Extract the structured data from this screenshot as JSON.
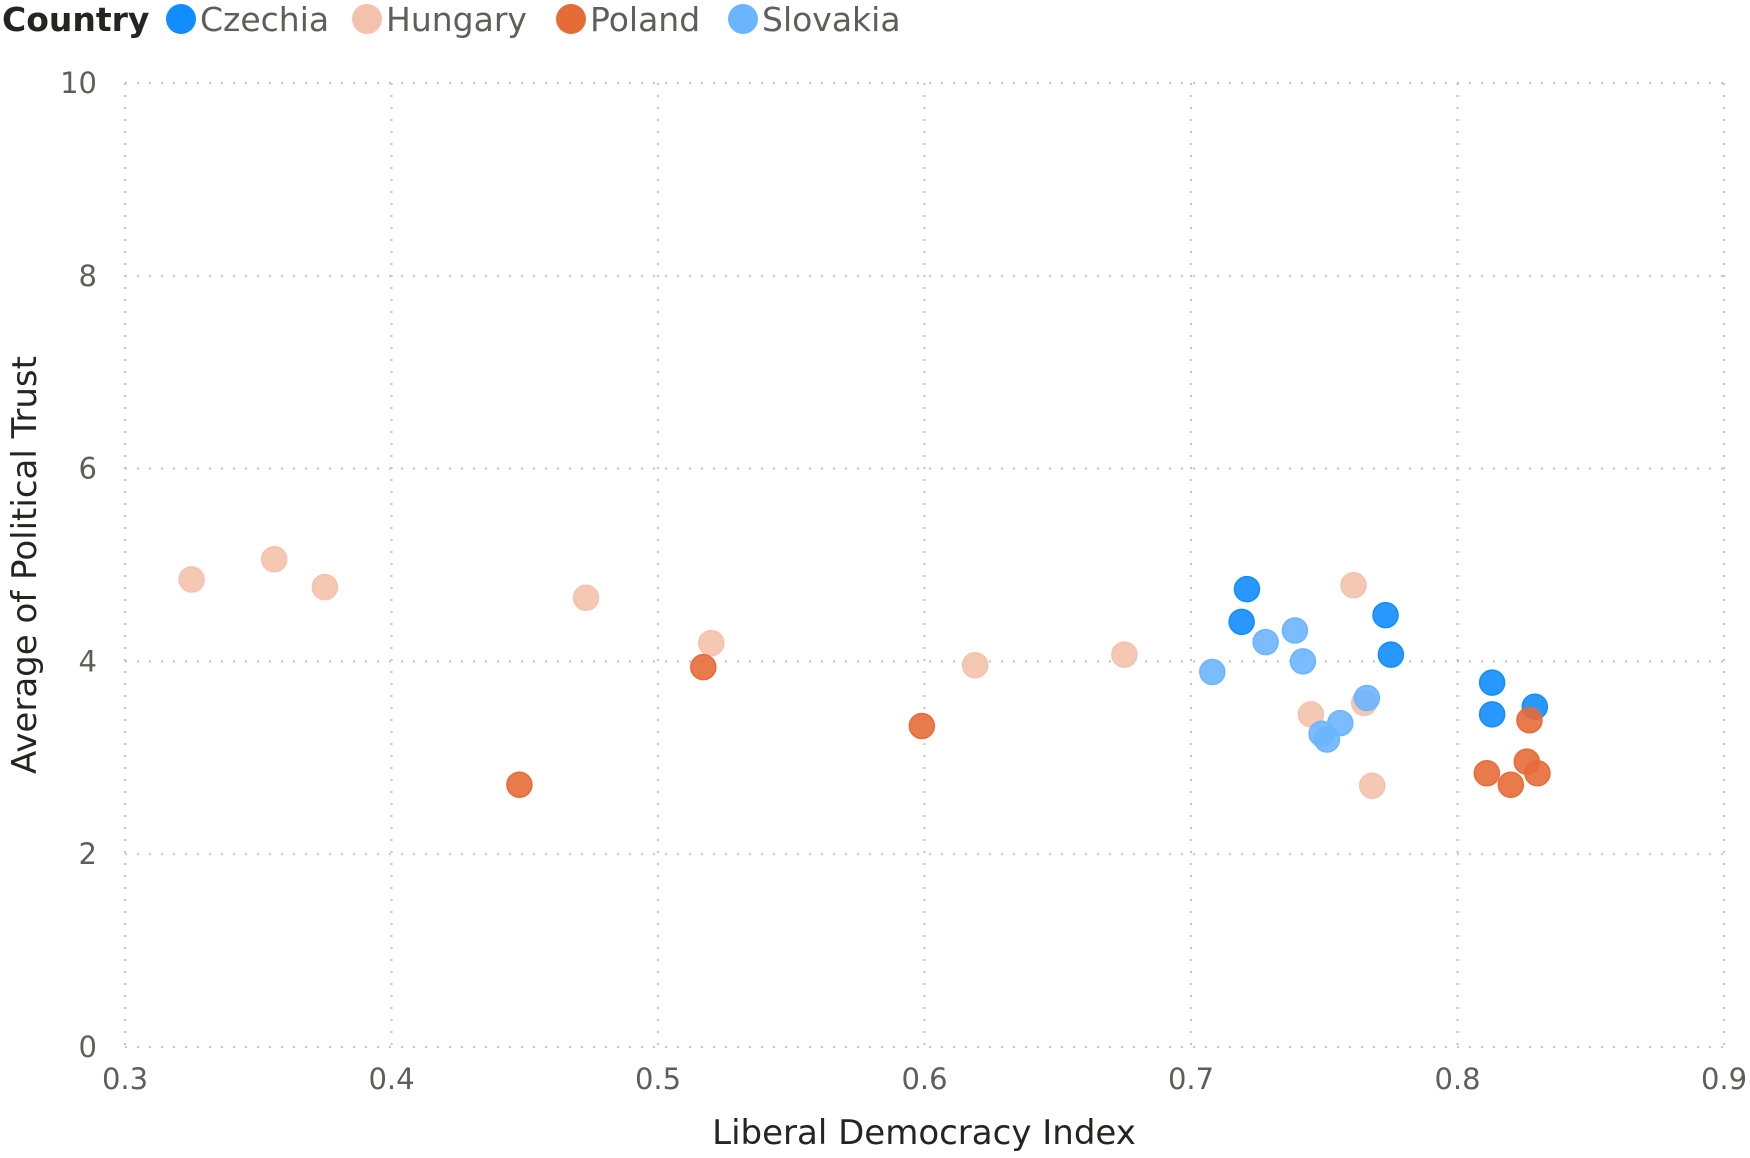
{
  "chart_data": {
    "type": "scatter",
    "title": "",
    "xlabel": "Liberal Democracy Index",
    "ylabel": "Average of Political Trust",
    "xlim": [
      0.3,
      0.9
    ],
    "ylim": [
      0,
      10
    ],
    "xticks": [
      "0.3",
      "0.4",
      "0.5",
      "0.6",
      "0.7",
      "0.8",
      "0.9"
    ],
    "yticks": [
      "0",
      "2",
      "4",
      "6",
      "8",
      "10"
    ],
    "grid": true,
    "legend": {
      "title": "Country",
      "position": "top-left"
    },
    "series": [
      {
        "name": "Czechia",
        "color": "#118DFF",
        "points": [
          [
            0.721,
            4.75
          ],
          [
            0.719,
            4.41
          ],
          [
            0.773,
            4.48
          ],
          [
            0.775,
            4.07
          ],
          [
            0.813,
            3.78
          ],
          [
            0.813,
            3.45
          ],
          [
            0.829,
            3.53
          ]
        ]
      },
      {
        "name": "Hungary",
        "color": "#F4C2AC",
        "points": [
          [
            0.325,
            4.85
          ],
          [
            0.356,
            5.06
          ],
          [
            0.375,
            4.77
          ],
          [
            0.473,
            4.66
          ],
          [
            0.52,
            4.19
          ],
          [
            0.619,
            3.96
          ],
          [
            0.675,
            4.07
          ],
          [
            0.761,
            4.79
          ],
          [
            0.745,
            3.45
          ],
          [
            0.765,
            3.57
          ],
          [
            0.768,
            2.71
          ]
        ]
      },
      {
        "name": "Poland",
        "color": "#E66C37",
        "points": [
          [
            0.517,
            3.94
          ],
          [
            0.448,
            2.72
          ],
          [
            0.599,
            3.33
          ],
          [
            0.827,
            3.39
          ],
          [
            0.811,
            2.84
          ],
          [
            0.82,
            2.72
          ],
          [
            0.826,
            2.96
          ],
          [
            0.83,
            2.84
          ]
        ]
      },
      {
        "name": "Slovakia",
        "color": "#6BB5FF",
        "points": [
          [
            0.708,
            3.89
          ],
          [
            0.728,
            4.2
          ],
          [
            0.739,
            4.32
          ],
          [
            0.742,
            4.0
          ],
          [
            0.766,
            3.62
          ],
          [
            0.756,
            3.36
          ],
          [
            0.749,
            3.25
          ],
          [
            0.751,
            3.19
          ]
        ]
      }
    ]
  }
}
